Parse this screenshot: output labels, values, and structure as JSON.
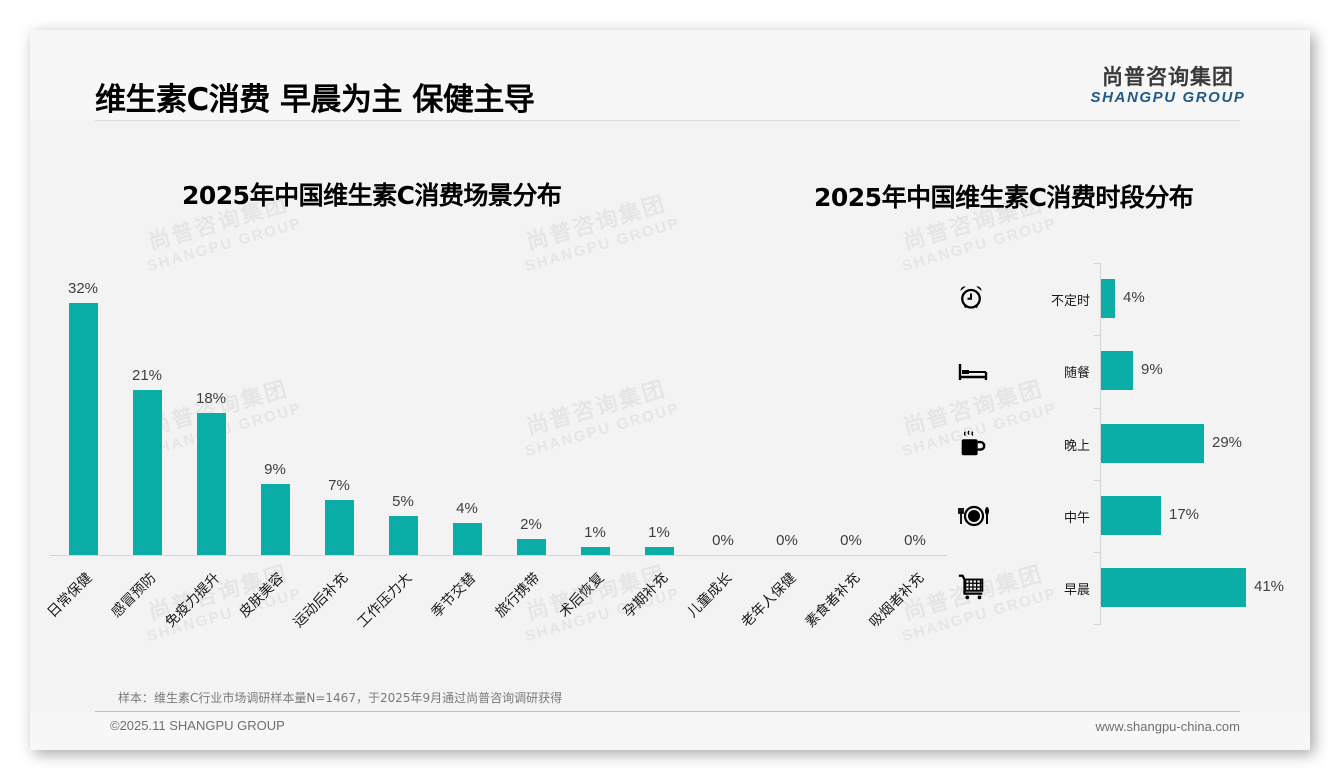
{
  "header": {
    "title": "维生素C消费 早晨为主 保健主导",
    "logo_cn": "尚普咨询集团",
    "logo_en": "SHANGPU GROUP"
  },
  "watermark": {
    "cn": "尚普咨询集团",
    "en": "SHANGPU GROUP"
  },
  "colors": {
    "bar": "#0aaea6",
    "logo_en": "#1f5a8a",
    "background": "#f3f3f3"
  },
  "left_chart": {
    "title": "2025年中国维生素C消费场景分布",
    "categories": [
      "日常保健",
      "感冒预防",
      "免疫力提升",
      "皮肤美容",
      "运动后补充",
      "工作压力大",
      "季节交替",
      "旅行携带",
      "术后恢复",
      "孕期补充",
      "儿童成长",
      "老年人保健",
      "素食者补充",
      "吸烟者补充"
    ],
    "labels": [
      "32%",
      "21%",
      "18%",
      "9%",
      "7%",
      "5%",
      "4%",
      "2%",
      "1%",
      "1%",
      "0%",
      "0%",
      "0%",
      "0%"
    ]
  },
  "right_chart": {
    "title": "2025年中国维生素C消费时段分布",
    "categories": [
      "不定时",
      "随餐",
      "晚上",
      "中午",
      "早晨"
    ],
    "labels": [
      "4%",
      "9%",
      "29%",
      "17%",
      "41%"
    ],
    "icons": [
      "alarm-clock-icon",
      "bed-icon",
      "hot-coffee-icon",
      "plate-cutlery-icon",
      "shopping-cart-icon"
    ]
  },
  "footer": {
    "sample_note": "样本：维生素C行业市场调研样本量N=1467，于2025年9月通过尚普咨询调研获得",
    "copyright": "©2025.11 SHANGPU GROUP",
    "website": "www.shangpu-china.com"
  },
  "chart_data": [
    {
      "type": "bar",
      "title": "2025年中国维生素C消费场景分布",
      "categories": [
        "日常保健",
        "感冒预防",
        "免疫力提升",
        "皮肤美容",
        "运动后补充",
        "工作压力大",
        "季节交替",
        "旅行携带",
        "术后恢复",
        "孕期补充",
        "儿童成长",
        "老年人保健",
        "素食者补充",
        "吸烟者补充"
      ],
      "values": [
        32,
        21,
        18,
        9,
        7,
        5,
        4,
        2,
        1,
        1,
        0,
        0,
        0,
        0
      ],
      "unit": "%",
      "xlabel": "",
      "ylabel": "",
      "ylim": [
        0,
        32
      ],
      "grid": false,
      "legend": "none"
    },
    {
      "type": "bar",
      "orientation": "horizontal",
      "title": "2025年中国维生素C消费时段分布",
      "categories": [
        "不定时",
        "随餐",
        "晚上",
        "中午",
        "早晨"
      ],
      "values": [
        4,
        9,
        29,
        17,
        41
      ],
      "unit": "%",
      "xlabel": "",
      "ylabel": "",
      "xlim": [
        0,
        41
      ],
      "grid": false,
      "legend": "none"
    }
  ]
}
